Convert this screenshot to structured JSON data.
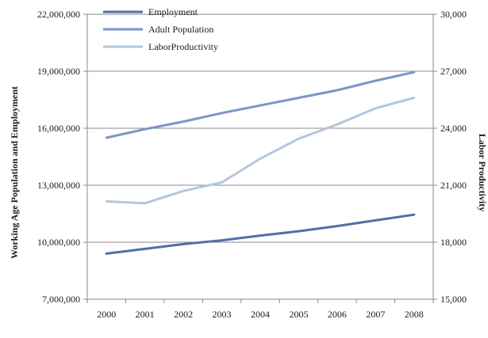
{
  "chart_data": {
    "type": "line",
    "title": "",
    "categories": [
      "2000",
      "2001",
      "2002",
      "2003",
      "2004",
      "2005",
      "2006",
      "2007",
      "2008"
    ],
    "y_left": {
      "label": "Working Age Population and Employment",
      "range": [
        7000000,
        22000000
      ],
      "ticks": [
        "7,000,000",
        "10,000,000",
        "13,000,000",
        "16,000,000",
        "19,000,000",
        "22,000,000"
      ]
    },
    "y_right": {
      "label": "Labor Productivity",
      "range": [
        15000,
        30000
      ],
      "ticks": [
        "15,000",
        "18,000",
        "21,000",
        "24,000",
        "27,000",
        "30,000"
      ]
    },
    "grid": "horizontal",
    "legend_position": "top-left",
    "series": [
      {
        "name": "Employment",
        "axis": "left",
        "color": "#4f6fa5",
        "values": [
          9400000,
          9650000,
          9900000,
          10100000,
          10350000,
          10580000,
          10850000,
          11150000,
          11450000
        ]
      },
      {
        "name": "Adult Population",
        "axis": "left",
        "color": "#7a96c4",
        "values": [
          15500000,
          15950000,
          16350000,
          16800000,
          17200000,
          17600000,
          18000000,
          18500000,
          18950000
        ]
      },
      {
        "name": "LaborProductivity",
        "axis": "right",
        "color": "#b4c6df",
        "values": [
          20150,
          20050,
          20700,
          21150,
          22400,
          23450,
          24200,
          25050,
          25600
        ]
      }
    ]
  }
}
